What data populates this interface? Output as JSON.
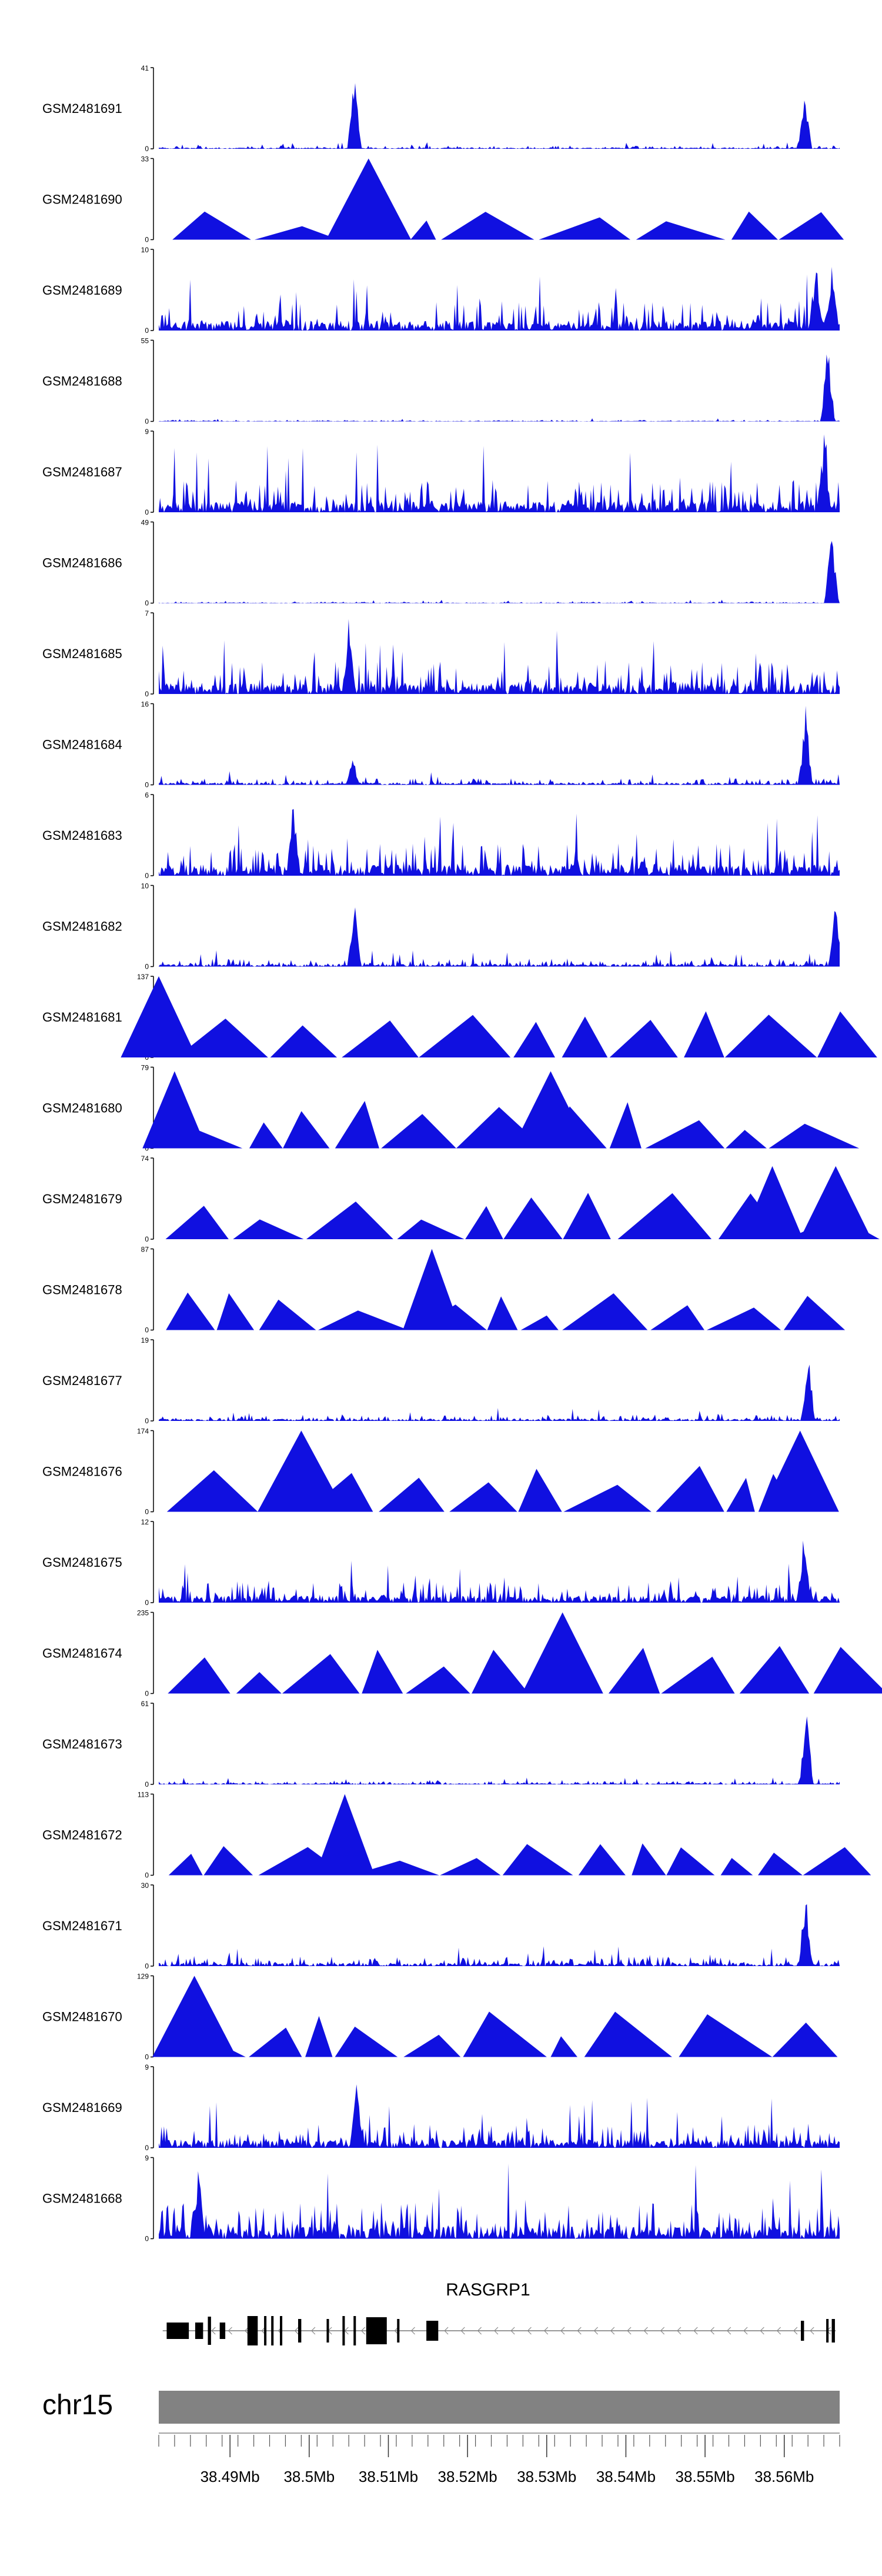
{
  "colors": {
    "track": "#1010e0",
    "gene": "#000000",
    "ideogram": "#828282",
    "text": "#000000"
  },
  "chart_data": {
    "type": "area",
    "title": "",
    "chromosome": "chr15",
    "x_range_mb": [
      38.481,
      38.567
    ],
    "x_ticks": [
      "38.49Mb",
      "38.5Mb",
      "38.51Mb",
      "38.52Mb",
      "38.53Mb",
      "38.54Mb",
      "38.55Mb",
      "38.56Mb"
    ],
    "x_tick_values": [
      38.49,
      38.5,
      38.51,
      38.52,
      38.53,
      38.54,
      38.55,
      38.56
    ],
    "gene": {
      "name": "RASGRP1",
      "start": 38.481,
      "end": 38.567,
      "strand": "-"
    },
    "series": [
      {
        "name": "GSM2481691",
        "ymax": 41,
        "style": "dense",
        "peaks": [
          [
            38.5057,
            1.0
          ],
          [
            38.5626,
            0.75
          ]
        ],
        "base": 0.04
      },
      {
        "name": "GSM2481690",
        "ymax": 33,
        "style": "tri",
        "peaks": [
          [
            38.5075,
            1.0
          ]
        ],
        "base": 0.3
      },
      {
        "name": "GSM2481689",
        "ymax": 10,
        "style": "dense",
        "peaks": [
          [
            38.564,
            0.95
          ],
          [
            38.566,
            0.9
          ]
        ],
        "base": 0.35
      },
      {
        "name": "GSM2481688",
        "ymax": 55,
        "style": "dense",
        "peaks": [
          [
            38.5655,
            1.0
          ]
        ],
        "base": 0.02
      },
      {
        "name": "GSM2481687",
        "ymax": 9,
        "style": "dense",
        "peaks": [
          [
            38.565,
            1.0
          ]
        ],
        "base": 0.4
      },
      {
        "name": "GSM2481686",
        "ymax": 49,
        "style": "dense",
        "peaks": [
          [
            38.566,
            1.0
          ]
        ],
        "base": 0.02
      },
      {
        "name": "GSM2481685",
        "ymax": 7,
        "style": "dense",
        "peaks": [
          [
            38.505,
            0.95
          ]
        ],
        "base": 0.4
      },
      {
        "name": "GSM2481684",
        "ymax": 16,
        "style": "dense",
        "peaks": [
          [
            38.5627,
            1.0
          ],
          [
            38.5055,
            0.35
          ]
        ],
        "base": 0.08
      },
      {
        "name": "GSM2481683",
        "ymax": 6,
        "style": "dense",
        "peaks": [
          [
            38.498,
            1.0
          ]
        ],
        "base": 0.4
      },
      {
        "name": "GSM2481682",
        "ymax": 10,
        "style": "dense",
        "peaks": [
          [
            38.5057,
            0.95
          ],
          [
            38.5665,
            0.95
          ]
        ],
        "base": 0.1
      },
      {
        "name": "GSM2481681",
        "ymax": 137,
        "style": "tri",
        "peaks": [
          [
            38.481,
            1.0
          ]
        ],
        "base": 0.5
      },
      {
        "name": "GSM2481680",
        "ymax": 79,
        "style": "tri",
        "peaks": [
          [
            38.483,
            0.95
          ],
          [
            38.5305,
            0.95
          ]
        ],
        "base": 0.5
      },
      {
        "name": "GSM2481679",
        "ymax": 74,
        "style": "tri",
        "peaks": [
          [
            38.5585,
            0.9
          ],
          [
            38.5665,
            0.9
          ]
        ],
        "base": 0.5
      },
      {
        "name": "GSM2481678",
        "ymax": 87,
        "style": "tri",
        "peaks": [
          [
            38.5155,
            1.0
          ]
        ],
        "base": 0.4
      },
      {
        "name": "GSM2481677",
        "ymax": 19,
        "style": "dense",
        "peaks": [
          [
            38.563,
            0.95
          ]
        ],
        "base": 0.08
      },
      {
        "name": "GSM2481676",
        "ymax": 174,
        "style": "tri",
        "peaks": [
          [
            38.499,
            1.0
          ],
          [
            38.562,
            1.0
          ]
        ],
        "base": 0.0
      },
      {
        "name": "GSM2481675",
        "ymax": 12,
        "style": "dense",
        "peaks": [
          [
            38.5625,
            1.0
          ]
        ],
        "base": 0.25
      },
      {
        "name": "GSM2481674",
        "ymax": 235,
        "style": "tri",
        "peaks": [
          [
            38.532,
            1.0
          ]
        ],
        "base": 0.0
      },
      {
        "name": "GSM2481673",
        "ymax": 61,
        "style": "dense",
        "peaks": [
          [
            38.5628,
            1.0
          ]
        ],
        "base": 0.04
      },
      {
        "name": "GSM2481672",
        "ymax": 113,
        "style": "tri",
        "peaks": [
          [
            38.5045,
            1.0
          ]
        ],
        "base": 0.35
      },
      {
        "name": "GSM2481671",
        "ymax": 30,
        "style": "dense",
        "peaks": [
          [
            38.5627,
            1.0
          ]
        ],
        "base": 0.12
      },
      {
        "name": "GSM2481670",
        "ymax": 129,
        "style": "tri",
        "peaks": [
          [
            38.4855,
            1.0
          ]
        ],
        "base": 0.0
      },
      {
        "name": "GSM2481669",
        "ymax": 9,
        "style": "dense",
        "peaks": [
          [
            38.506,
            0.95
          ]
        ],
        "base": 0.3
      },
      {
        "name": "GSM2481668",
        "ymax": 9,
        "style": "dense",
        "peaks": [
          [
            38.486,
            0.95
          ]
        ],
        "base": 0.45
      }
    ]
  }
}
